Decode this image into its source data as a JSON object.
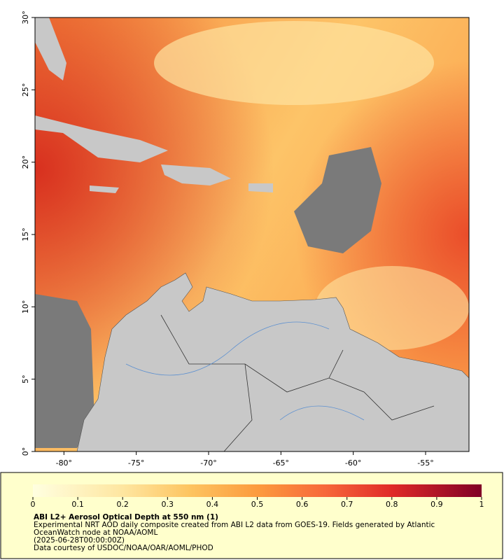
{
  "map": {
    "xlim": [
      -82,
      -52
    ],
    "ylim": [
      0,
      30
    ],
    "xticks": [
      {
        "value": -80,
        "label": "-80°"
      },
      {
        "value": -75,
        "label": "-75°"
      },
      {
        "value": -70,
        "label": "-70°"
      },
      {
        "value": -65,
        "label": "-65°"
      },
      {
        "value": -60,
        "label": "-60°"
      },
      {
        "value": -55,
        "label": "-55°"
      }
    ],
    "yticks": [
      {
        "value": 0,
        "label": "0°"
      },
      {
        "value": 5,
        "label": "5°"
      },
      {
        "value": 10,
        "label": "10°"
      },
      {
        "value": 15,
        "label": "15°"
      },
      {
        "value": 20,
        "label": "20°"
      },
      {
        "value": 25,
        "label": "25°"
      },
      {
        "value": 30,
        "label": "30°"
      }
    ]
  },
  "colorbar": {
    "range": [
      0,
      1
    ],
    "ticks": [
      0,
      0.1,
      0.2,
      0.3,
      0.4,
      0.5,
      0.6,
      0.7,
      0.8,
      0.9,
      1
    ]
  },
  "caption": {
    "title": "ABI L2+ Aerosol Optical Depth at 550 nm (1)",
    "lines": [
      "Experimental NRT AOD daily composite created from ABI L2 data from GOES-19. Fields generated by Atlantic",
      "OceanWatch node at NOAA/AOML",
      "(2025-06-28T00:00:00Z)",
      "Data courtesy of USDOC/NOAA/OAR/AOML/PHOD"
    ]
  }
}
